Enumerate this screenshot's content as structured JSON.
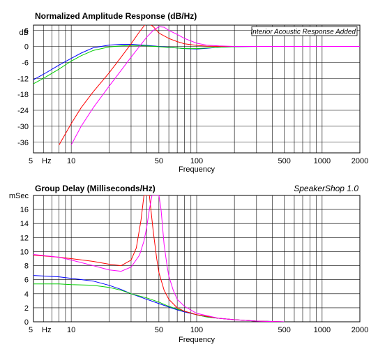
{
  "chart_data": [
    {
      "type": "line",
      "title": "Normalized Amplitude Response (dB/Hz)",
      "annotation": "Interior Acoustic Response Added",
      "xlabel": "Frequency",
      "ylabel": "dB",
      "x_scale": "log",
      "xlim": [
        5,
        2000
      ],
      "ylim": [
        -40,
        8
      ],
      "x_tick_labels": [
        {
          "x": 5,
          "label": "5"
        },
        {
          "x": 10,
          "label": "10"
        },
        {
          "x": 50,
          "label": "50"
        },
        {
          "x": 100,
          "label": "100"
        },
        {
          "x": 500,
          "label": "500"
        },
        {
          "x": 1000,
          "label": "1000"
        },
        {
          "x": 2000,
          "label": "2000"
        }
      ],
      "x_unit_label": "Hz",
      "y_ticks": [
        6,
        0,
        -6,
        -12,
        -18,
        -24,
        -30,
        -36
      ],
      "y_tick_labels": [
        "6",
        "0",
        "-6",
        "-12",
        "-18",
        "-24",
        "-30",
        "-36"
      ],
      "grid": true,
      "series": [
        {
          "color": "#0000ff",
          "x": [
            5,
            6,
            8,
            10,
            12,
            15,
            20,
            25,
            30,
            40,
            50,
            60,
            70,
            80,
            100,
            120,
            150,
            200,
            300,
            400
          ],
          "y": [
            -12.5,
            -10.5,
            -7,
            -4.5,
            -2.5,
            -0.5,
            0.5,
            0.8,
            0.8,
            0.4,
            0,
            -0.3,
            -0.6,
            -0.8,
            -1.0,
            -0.7,
            -0.3,
            -0.1,
            0,
            0
          ]
        },
        {
          "color": "#00cc00",
          "x": [
            5,
            6,
            8,
            10,
            12,
            15,
            20,
            25,
            30,
            40,
            50,
            60,
            70,
            80,
            100,
            120,
            150,
            200,
            300,
            400
          ],
          "y": [
            -14,
            -12,
            -8.5,
            -5.5,
            -3.5,
            -1.5,
            -0.2,
            0.2,
            0.4,
            0.2,
            -0.1,
            -0.4,
            -0.6,
            -0.8,
            -0.8,
            -0.6,
            -0.3,
            -0.1,
            0,
            0
          ]
        },
        {
          "color": "#ff0000",
          "x": [
            8,
            10,
            12,
            15,
            20,
            25,
            30,
            35,
            40,
            45,
            50,
            60,
            70,
            80,
            100,
            120,
            150,
            200,
            300,
            400
          ],
          "y": [
            -37,
            -29,
            -23,
            -17,
            -10,
            -4,
            1,
            5.5,
            9,
            7.5,
            5,
            3,
            1.8,
            1,
            0.4,
            0.1,
            0,
            0,
            0,
            0
          ]
        },
        {
          "color": "#ff00ff",
          "x": [
            10,
            12,
            15,
            20,
            25,
            30,
            35,
            40,
            45,
            50,
            55,
            60,
            70,
            80,
            100,
            120,
            150,
            200,
            300,
            400,
            1000,
            2000
          ],
          "y": [
            -37,
            -30,
            -23,
            -15,
            -9,
            -4,
            0,
            3.5,
            6,
            7.4,
            7.2,
            6,
            4.5,
            3,
            1.2,
            0.5,
            0.2,
            0,
            0,
            0,
            0,
            0
          ]
        }
      ]
    },
    {
      "type": "line",
      "title": "Group Delay (Milliseconds/Hz)",
      "brand": "SpeakerShop 1.0",
      "xlabel": "Frequency",
      "ylabel": "mSec",
      "x_scale": "log",
      "xlim": [
        5,
        2000
      ],
      "ylim": [
        0,
        18
      ],
      "x_tick_labels": [
        {
          "x": 5,
          "label": "5"
        },
        {
          "x": 10,
          "label": "10"
        },
        {
          "x": 50,
          "label": "50"
        },
        {
          "x": 100,
          "label": "100"
        },
        {
          "x": 500,
          "label": "500"
        },
        {
          "x": 1000,
          "label": "1000"
        },
        {
          "x": 2000,
          "label": "2000"
        }
      ],
      "x_unit_label": "Hz",
      "y_ticks": [
        16,
        14,
        12,
        10,
        8,
        6,
        4,
        2,
        0
      ],
      "y_tick_labels": [
        "16",
        "14",
        "12",
        "10",
        "8",
        "6",
        "4",
        "2",
        "0"
      ],
      "grid": true,
      "series": [
        {
          "color": "#0000ff",
          "x": [
            5,
            8,
            10,
            15,
            20,
            25,
            30,
            40,
            50,
            60,
            70,
            80,
            100,
            120,
            150,
            200,
            300,
            400,
            500
          ],
          "y": [
            6.6,
            6.4,
            6.2,
            5.8,
            5.2,
            4.6,
            4.0,
            3.2,
            2.6,
            2.1,
            1.7,
            1.4,
            1.0,
            0.7,
            0.5,
            0.3,
            0.1,
            0.05,
            0
          ]
        },
        {
          "color": "#00cc00",
          "x": [
            5,
            8,
            10,
            15,
            20,
            25,
            30,
            40,
            50,
            60,
            70,
            80,
            100,
            120,
            150,
            200,
            300,
            400,
            500
          ],
          "y": [
            5.4,
            5.4,
            5.3,
            5.2,
            4.9,
            4.5,
            4.0,
            3.4,
            2.8,
            2.2,
            1.8,
            1.5,
            1.0,
            0.7,
            0.5,
            0.3,
            0.1,
            0.05,
            0
          ]
        },
        {
          "color": "#ff0000",
          "x": [
            5,
            8,
            10,
            15,
            20,
            25,
            30,
            33,
            36,
            38,
            40,
            42,
            45,
            48,
            50,
            55,
            60,
            70,
            80,
            100,
            150,
            200,
            300,
            500
          ],
          "y": [
            9.5,
            9.2,
            9.0,
            8.6,
            8.2,
            8.0,
            8.8,
            10.5,
            14.5,
            18,
            18,
            18,
            13,
            9.0,
            7.0,
            4.5,
            3.2,
            2.0,
            1.5,
            1.0,
            0.5,
            0.3,
            0.1,
            0
          ]
        },
        {
          "color": "#ff00ff",
          "x": [
            5,
            8,
            10,
            15,
            20,
            25,
            30,
            35,
            38,
            40,
            42,
            44,
            46,
            48,
            50,
            52,
            55,
            58,
            60,
            65,
            70,
            80,
            100,
            150,
            200,
            300,
            500
          ],
          "y": [
            9.6,
            9.2,
            8.8,
            8.0,
            7.4,
            7.2,
            7.8,
            9.5,
            11.5,
            13.5,
            16,
            18,
            18,
            18,
            18,
            16,
            11,
            8.0,
            6.5,
            4.5,
            3.2,
            2.2,
            1.2,
            0.5,
            0.3,
            0.1,
            0
          ]
        }
      ]
    }
  ]
}
